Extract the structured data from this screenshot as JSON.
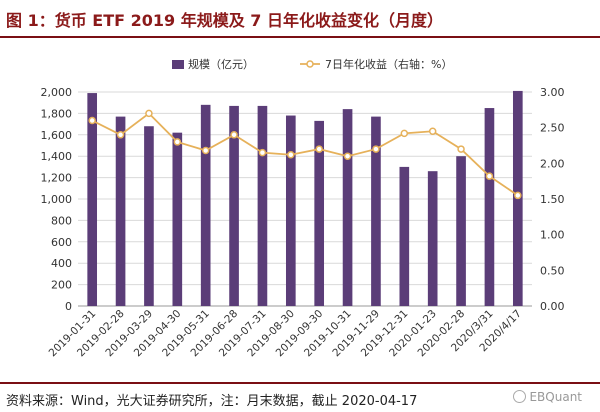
{
  "title": "图 1：货币 ETF 2019 年规模及 7 日年化收益变化（月度）",
  "source": "资料来源：Wind，光大证券研究所，注：月末数据，截止 2020-04-17",
  "watermark": "EBQuant",
  "colors": {
    "bar": "#5b3d78",
    "line": "#e6b15a",
    "marker_fill": "#ffffff",
    "grid": "#d9d9d9",
    "title": "#8b1a1a"
  },
  "chart_data": {
    "type": "bar",
    "categories": [
      "2019-01-31",
      "2019-02-28",
      "2019-03-29",
      "2019-04-30",
      "2019-05-31",
      "2019-06-28",
      "2019-07-31",
      "2019-08-30",
      "2019-09-30",
      "2019-10-31",
      "2019-11-29",
      "2019-12-31",
      "2020-01-23",
      "2020-02-28",
      "2020/3/31",
      "2020/4/17"
    ],
    "series": [
      {
        "name": "规模（亿元）",
        "type": "bar",
        "axis": "left",
        "values": [
          1990,
          1770,
          1680,
          1620,
          1880,
          1870,
          1870,
          1780,
          1730,
          1840,
          1770,
          1300,
          1260,
          1400,
          1850,
          2010
        ]
      },
      {
        "name": "7日年化收益（右轴：%）",
        "type": "line",
        "axis": "right",
        "values": [
          2.6,
          2.4,
          2.7,
          2.3,
          2.18,
          2.4,
          2.15,
          2.12,
          2.2,
          2.1,
          2.2,
          2.42,
          2.45,
          2.2,
          1.82,
          1.55
        ]
      }
    ],
    "left_axis": {
      "ylim": [
        0,
        2000
      ],
      "ticks": [
        "0",
        "200",
        "400",
        "600",
        "800",
        "1,000",
        "1,200",
        "1,400",
        "1,600",
        "1,800",
        "2,000"
      ]
    },
    "right_axis": {
      "ylim": [
        0,
        3
      ],
      "ticks": [
        "0.00",
        "0.50",
        "1.00",
        "1.50",
        "2.00",
        "2.50",
        "3.00"
      ]
    },
    "legend": [
      {
        "label": "规模（亿元）",
        "kind": "bar"
      },
      {
        "label": "7日年化收益（右轴：%）",
        "kind": "line"
      }
    ]
  }
}
